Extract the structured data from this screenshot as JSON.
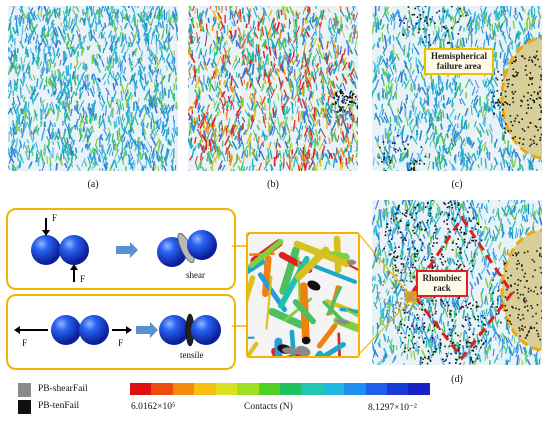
{
  "panels": {
    "a": {
      "label": "(a)"
    },
    "b": {
      "label": "(b)"
    },
    "c": {
      "label": "(c)",
      "callout": [
        "Hemispherical",
        "failure area"
      ]
    },
    "d": {
      "label": "(d)",
      "callout": [
        "Rhombiec",
        "rack"
      ]
    }
  },
  "mechanisms": {
    "force_label": "F",
    "shear_label": "shear",
    "tensile_label": "tensile"
  },
  "legend": {
    "shear_fail": "PB-shearFail",
    "ten_fail": "PB-tenFail",
    "colorbar_min": "6.0162×10⁵",
    "colorbar_title": "Contacts  (N)",
    "colorbar_max": "8.1297×10⁻²",
    "colorbar_colors": [
      "#e01010",
      "#f04a10",
      "#f58a10",
      "#f5c010",
      "#d8e020",
      "#a0e020",
      "#50d020",
      "#20c060",
      "#20c8b0",
      "#20b8e0",
      "#2090f0",
      "#2060e8",
      "#1a3ad8",
      "#1a20c8"
    ],
    "shear_color": "#8a8a8a",
    "ten_color": "#111111"
  }
}
